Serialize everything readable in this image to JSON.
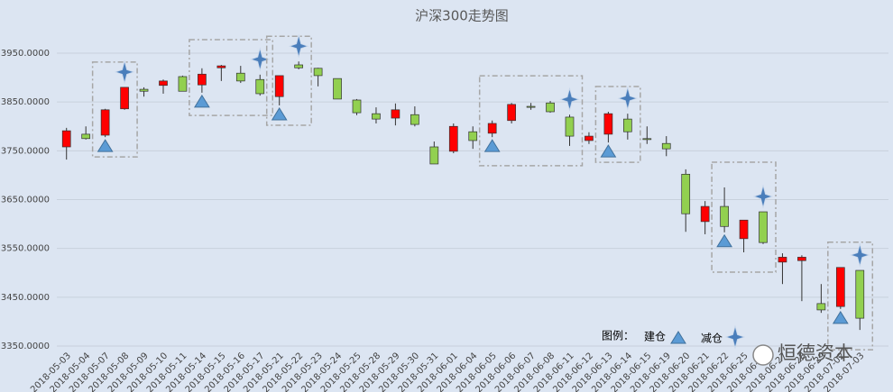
{
  "chart_data": {
    "type": "candlestick",
    "title": "沪深300走势图",
    "categories": [
      "2018-05-03",
      "2018-05-04",
      "2018-05-07",
      "2018-05-08",
      "2018-05-09",
      "2018-05-10",
      "2018-05-11",
      "2018-05-14",
      "2018-05-15",
      "2018-05-16",
      "2018-05-17",
      "2018-05-21",
      "2018-05-22",
      "2018-05-23",
      "2018-05-24",
      "2018-05-25",
      "2018-05-28",
      "2018-05-29",
      "2018-05-30",
      "2018-05-31",
      "2018-06-01",
      "2018-06-04",
      "2018-06-05",
      "2018-06-06",
      "2018-06-07",
      "2018-06-08",
      "2018-06-11",
      "2018-06-12",
      "2018-06-13",
      "2018-06-14",
      "2018-06-15",
      "2018-06-19",
      "2018-06-20",
      "2018-06-21",
      "2018-06-22",
      "2018-06-25",
      "2018-06-26",
      "2018-06-27",
      "2018-06-28",
      "2018-06-29",
      "2018-07-02",
      "2018-07-03"
    ],
    "open": [
      3758,
      3784,
      3782,
      3836,
      3876,
      3884,
      3902,
      3885,
      3920,
      3909,
      3896,
      3861,
      3926,
      3919,
      3898,
      3854,
      3826,
      3817,
      3824,
      3758,
      3749,
      3789,
      3786,
      3812,
      3841,
      3848,
      3819,
      3771,
      3784,
      3815,
      3775,
      3765,
      3702,
      3605,
      3636,
      3570,
      3625,
      3522,
      3525,
      3437,
      3431,
      3505
    ],
    "high": [
      3797,
      3800,
      3836,
      3880,
      3880,
      3896,
      3904,
      3919,
      3926,
      3924,
      3906,
      3904,
      3933,
      3920,
      3898,
      3856,
      3839,
      3847,
      3841,
      3769,
      3806,
      3800,
      3812,
      3848,
      3848,
      3852,
      3824,
      3788,
      3830,
      3826,
      3800,
      3780,
      3712,
      3647,
      3675,
      3608,
      3625,
      3540,
      3536,
      3477,
      3511,
      3505
    ],
    "low": [
      3732,
      3773,
      3778,
      3834,
      3861,
      3867,
      3872,
      3869,
      3893,
      3889,
      3863,
      3843,
      3917,
      3882,
      3856,
      3823,
      3806,
      3802,
      3800,
      3723,
      3745,
      3754,
      3778,
      3806,
      3834,
      3828,
      3760,
      3764,
      3767,
      3773,
      3764,
      3739,
      3584,
      3579,
      3583,
      3542,
      3559,
      3477,
      3442,
      3418,
      3426,
      3383
    ],
    "close": [
      3791,
      3775,
      3834,
      3880,
      3872,
      3893,
      3872,
      3907,
      3924,
      3893,
      3867,
      3904,
      3920,
      3904,
      3856,
      3828,
      3815,
      3834,
      3804,
      3723,
      3800,
      3771,
      3806,
      3845,
      3839,
      3830,
      3780,
      3780,
      3826,
      3789,
      3773,
      3754,
      3621,
      3636,
      3595,
      3608,
      3562,
      3532,
      3532,
      3424,
      3511,
      3407
    ],
    "up_color": "#ff0000",
    "down_color": "#92d050",
    "ylim": [
      3350,
      3950
    ],
    "yticks": [
      {
        "value": 3350,
        "label": "3350.0000"
      },
      {
        "value": 3450,
        "label": "3450.0000"
      },
      {
        "value": 3550,
        "label": "3550.0000"
      },
      {
        "value": 3650,
        "label": "3650.0000"
      },
      {
        "value": 3750,
        "label": "3750.0000"
      },
      {
        "value": 3850,
        "label": "3850.0000"
      },
      {
        "value": 3950,
        "label": "3950.0000"
      }
    ],
    "grid": true,
    "buy": [
      "2018-05-07",
      "2018-05-14",
      "2018-05-21",
      "2018-06-05",
      "2018-06-13",
      "2018-06-22",
      "2018-07-02"
    ],
    "sell": [
      "2018-05-08",
      "2018-05-17",
      "2018-05-22",
      "2018-06-11",
      "2018-06-14",
      "2018-06-26",
      "2018-07-03"
    ],
    "legend_title": "图例：",
    "buy_label": "建仓",
    "sell_label": "减仓",
    "watermark": "恒德资本"
  }
}
